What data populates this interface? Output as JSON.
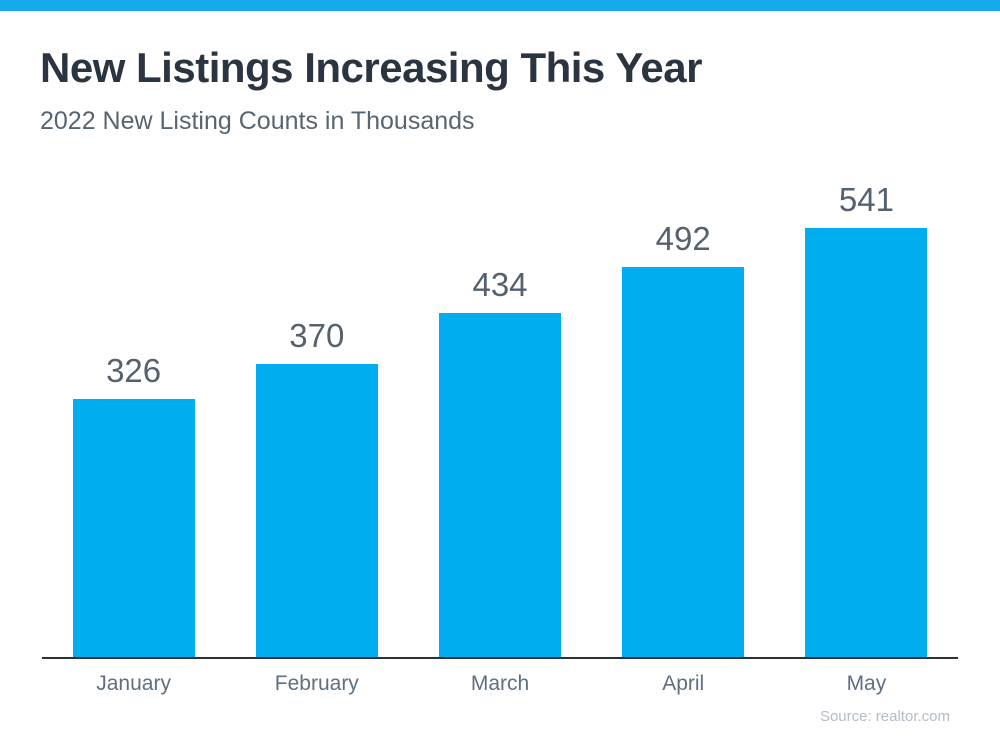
{
  "header": {
    "title": "New Listings Increasing This Year",
    "subtitle": "2022 New Listing Counts in Thousands"
  },
  "footer": {
    "source": "Source: realtor.com"
  },
  "colors": {
    "accent_bar": "#17A9EC",
    "bar_fill": "#00AEEF",
    "title_text": "#2B3541",
    "subtitle_text": "#566570",
    "value_label_text": "#54626F",
    "month_label_text": "#5E7080",
    "source_text": "#B1BDC7",
    "axis_line": "#2B3138",
    "background": "#FFFFFF"
  },
  "chart_data": {
    "type": "bar",
    "title": "New Listings Increasing This Year",
    "subtitle": "2022 New Listing Counts in Thousands",
    "categories": [
      "January",
      "February",
      "March",
      "April",
      "May"
    ],
    "values": [
      326,
      370,
      434,
      492,
      541
    ],
    "xlabel": "",
    "ylabel": "",
    "ylim": [
      0,
      545
    ],
    "grid": false,
    "legend": false,
    "value_labels_shown": true,
    "source": "Source: realtor.com"
  }
}
